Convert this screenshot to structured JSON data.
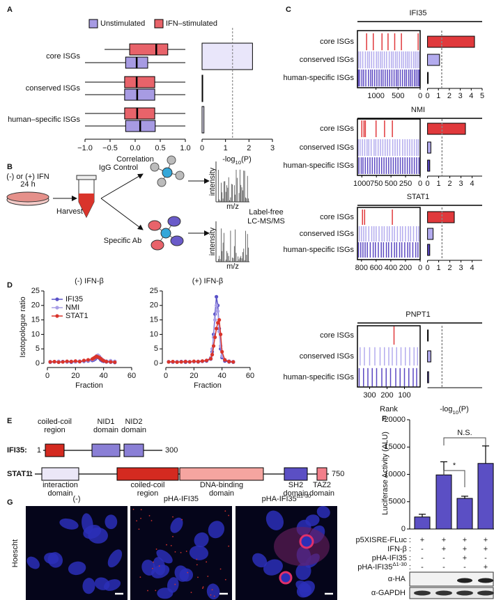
{
  "A": {
    "label": "A",
    "categories": [
      "core ISGs",
      "conserved ISGs",
      "human–specific ISGs"
    ],
    "series": [
      {
        "name": "Unstimulated",
        "color": "#a79be3",
        "boxes": [
          [
            -1.0,
            -0.19,
            0.03,
            0.25,
            1.0
          ],
          [
            -1.0,
            -0.21,
            0.04,
            0.39,
            1.0
          ],
          [
            -1.0,
            -0.19,
            0.1,
            0.4,
            1.0
          ]
        ]
      },
      {
        "name": "IFN–stimulated",
        "color": "#e8636a",
        "boxes": [
          [
            -0.61,
            -0.11,
            0.42,
            0.65,
            1.0
          ],
          [
            -1.0,
            -0.21,
            0.03,
            0.39,
            1.0
          ],
          [
            -1.0,
            -0.21,
            0.04,
            0.39,
            1.0
          ]
        ]
      }
    ],
    "xlim": [
      -1,
      1
    ],
    "xticks": [
      {
        "value": -1,
        "label": "−1.0"
      },
      {
        "value": -0.5,
        "label": "−0.5"
      },
      {
        "value": 0,
        "label": "0.0"
      },
      {
        "value": 0.5,
        "label": "0.5"
      },
      {
        "value": 1,
        "label": "1.0"
      }
    ],
    "xlabel": "Correlation",
    "p": {
      "values": [
        2.15,
        0.03,
        0.08
      ],
      "color": "#e9e6fa",
      "xlim": [
        0,
        3
      ],
      "xticks": [
        0,
        1,
        2,
        3
      ],
      "threshold": 1.3,
      "xlabel": {
        "base": "-log",
        "sub": "10",
        "end": "(P)"
      }
    }
  },
  "B": {
    "label": "B",
    "treatment": [
      "(-) or (+) IFN",
      "24 h"
    ],
    "harvest": "Harvest",
    "control": "IgG Control",
    "antibody": "Specific Ab",
    "spectrum_y": "intensity",
    "spectrum_x": "m/z",
    "method": [
      "Label-free",
      "LC-MS/MS"
    ]
  },
  "C": {
    "label": "C",
    "colors": [
      "#e0393c",
      "#b3abee",
      "#5b48c2"
    ],
    "rank_xlabel": "Rank",
    "p_xlabel": {
      "base": "-log",
      "sub": "10",
      "end": "(P)"
    },
    "blocks": [
      {
        "title": "IFI35",
        "categories": [
          "core ISGs",
          "conserved ISGs",
          "human-specific ISGs"
        ],
        "rank_xlim": [
          1420,
          0
        ],
        "rank_xticks": [
          1000,
          500,
          0
        ],
        "ranks": [
          [
            1212,
            1061,
            864,
            727,
            576,
            424,
            45
          ],
          [
            1390,
            1350,
            1300,
            1240,
            1190,
            1150,
            1100,
            1050,
            990,
            950,
            900,
            860,
            810,
            760,
            700,
            650,
            610,
            560,
            520,
            470,
            420,
            380,
            330,
            290,
            250,
            200,
            150,
            110,
            70,
            30
          ],
          [
            1400,
            1370,
            1320,
            1280,
            1230,
            1170,
            1120,
            1080,
            1030,
            980,
            930,
            880,
            840,
            790,
            740,
            690,
            640,
            590,
            540,
            500,
            450,
            400,
            350,
            310,
            260,
            220,
            180,
            130,
            90,
            50,
            20
          ]
        ],
        "p_values": [
          4.3,
          1.1,
          0.05
        ],
        "p_xlim": [
          -0.1,
          5
        ],
        "p_xticks": [
          0,
          1,
          2,
          3,
          4,
          5
        ],
        "threshold": 1.3
      },
      {
        "title": "NMI",
        "categories": [
          "core ISGs",
          "conserved ISGs",
          "human-specific ISGs"
        ],
        "rank_xlim": [
          1075,
          0
        ],
        "rank_xticks": [
          1000,
          750,
          500,
          250,
          0
        ],
        "ranks": [
          [
            1000,
            963,
            939,
            756,
            610,
            476
          ],
          [
            1060,
            1030,
            990,
            950,
            910,
            880,
            840,
            790,
            760,
            720,
            680,
            640,
            600,
            560,
            520,
            470,
            430,
            390,
            350,
            300,
            260,
            220,
            180,
            140,
            100,
            60,
            30
          ],
          [
            1050,
            1010,
            980,
            940,
            900,
            860,
            820,
            780,
            740,
            700,
            660,
            620,
            580,
            540,
            500,
            460,
            420,
            380,
            340,
            300,
            260,
            220,
            180,
            140,
            100,
            60,
            20
          ]
        ],
        "p_values": [
          3.4,
          0.3,
          0.2
        ],
        "p_xlim": [
          -0.1,
          4.9
        ],
        "p_xticks": [
          0,
          1,
          2,
          3,
          4
        ],
        "threshold": 1.3
      },
      {
        "title": "STAT1",
        "categories": [
          "core ISGs",
          "conserved ISGs",
          "human-specific ISGs"
        ],
        "rank_xlim": [
          855,
          0
        ],
        "rank_xticks": [
          800,
          600,
          400,
          200,
          0
        ],
        "ranks": [
          [
            786,
            757,
            379
          ],
          [
            830,
            800,
            770,
            740,
            700,
            660,
            630,
            600,
            560,
            520,
            490,
            450,
            420,
            380,
            350,
            310,
            270,
            240,
            200,
            160,
            130,
            90,
            50,
            20
          ],
          [
            840,
            810,
            780,
            750,
            720,
            680,
            640,
            610,
            570,
            530,
            500,
            460,
            430,
            390,
            350,
            320,
            280,
            250,
            210,
            170,
            140,
            100,
            60,
            30
          ]
        ],
        "p_values": [
          2.4,
          0.5,
          0.2
        ],
        "p_xlim": [
          -0.1,
          4.9
        ],
        "p_xticks": [
          0,
          1,
          2,
          3,
          4
        ],
        "threshold": 1.3
      },
      {
        "title": "PNPT1",
        "categories": [
          "core ISGs",
          "conserved ISGs",
          "human-specific ISGs"
        ],
        "rank_xlim": [
          370,
          10
        ],
        "rank_xticks": [
          300,
          200,
          100
        ],
        "ranks": [
          [
            160
          ],
          [
            355,
            330,
            300,
            270,
            240,
            215,
            190,
            170,
            145,
            120,
            95,
            70,
            45,
            25
          ],
          [
            360,
            335,
            310,
            285,
            260,
            230,
            205,
            180,
            150,
            125,
            100,
            75,
            50,
            30
          ]
        ],
        "p_values": [
          0.05,
          0.3,
          0.1
        ],
        "p_xlim": [
          -0.1,
          4.9
        ],
        "threshold": 1.3
      }
    ]
  },
  "D": {
    "label": "D",
    "ylabel": "Isotopologue ratio",
    "xlabel": "Fraction",
    "xlim": [
      0,
      60
    ],
    "xticks": [
      0,
      20,
      40,
      60
    ],
    "ylim": [
      0,
      25
    ],
    "yticks": [
      0,
      5,
      10,
      15,
      20,
      25
    ],
    "series": [
      {
        "name": "IFI35",
        "color": "#5a52c8"
      },
      {
        "name": "NMI",
        "color": "#a99fe6"
      },
      {
        "name": "STAT1",
        "color": "#d9342b"
      }
    ],
    "x": [
      2,
      5,
      8,
      11,
      14,
      17,
      20,
      23,
      26,
      29,
      32,
      33,
      34,
      35,
      36,
      37,
      38,
      39,
      40,
      42,
      45,
      48
    ],
    "plots": [
      {
        "title": "(-) IFN-β",
        "values": [
          [
            0.4,
            0.5,
            0.4,
            0.6,
            0.5,
            0.4,
            0.5,
            0.6,
            0.7,
            0.8,
            1.0,
            1.2,
            1.5,
            2.0,
            2.3,
            1.8,
            1.2,
            0.9,
            0.7,
            0.5,
            0.4,
            0.3
          ],
          [
            0.6,
            0.5,
            0.7,
            0.5,
            0.6,
            0.7,
            0.5,
            0.8,
            0.9,
            1.0,
            1.3,
            1.6,
            2.0,
            2.6,
            2.8,
            2.4,
            1.8,
            1.3,
            1.0,
            0.8,
            0.9,
            0.7
          ],
          [
            0.5,
            0.6,
            0.4,
            0.5,
            0.7,
            0.6,
            0.8,
            0.6,
            1.0,
            1.2,
            1.5,
            1.8,
            2.1,
            2.4,
            2.2,
            2.0,
            1.6,
            1.2,
            0.9,
            0.6,
            0.5,
            0.4
          ]
        ]
      },
      {
        "title": "(+) IFN-β",
        "values": [
          [
            0.5,
            0.4,
            0.5,
            0.6,
            0.4,
            0.5,
            0.6,
            0.5,
            0.7,
            0.8,
            1.5,
            4,
            10,
            17,
            23,
            20,
            12,
            5,
            2,
            0.8,
            0.5,
            0.4
          ],
          [
            0.6,
            0.5,
            0.6,
            0.5,
            0.7,
            0.6,
            0.5,
            0.7,
            0.8,
            1.0,
            2,
            5,
            9,
            15,
            20,
            18,
            11,
            6,
            2.5,
            1.2,
            0.8,
            0.6
          ],
          [
            0.5,
            0.6,
            0.4,
            0.5,
            0.6,
            0.5,
            0.7,
            0.6,
            0.8,
            1.0,
            1.6,
            3,
            6,
            9,
            12,
            14,
            15,
            10,
            4,
            1.2,
            0.6,
            0.5
          ]
        ]
      }
    ]
  },
  "E": {
    "label": "E",
    "proteins": [
      {
        "name": "IFI35:",
        "start": 1,
        "end": 300,
        "domains": [
          [
            "coiled-coil",
            "region"
          ],
          [
            "NID1",
            "domain"
          ],
          [
            "NID2",
            "domain"
          ]
        ]
      },
      {
        "name": "STAT1:",
        "start": 1,
        "end": 750,
        "domains": [
          [
            "interaction",
            "domain"
          ],
          [
            "coiled-coil",
            "region"
          ],
          [
            "DNA-binding",
            "domain"
          ],
          [
            "SH2",
            "domain"
          ],
          [
            "TAZ2",
            "domain"
          ]
        ]
      }
    ]
  },
  "F": {
    "label": "F",
    "ylabel": "Luciferase Activity (ALU)",
    "ylim": [
      0,
      20000
    ],
    "yticks": [
      0,
      5000,
      10000,
      15000,
      20000
    ],
    "values": [
      2200,
      9900,
      5600,
      12000
    ],
    "errors": [
      500,
      2400,
      400,
      3200
    ],
    "color": "#5b4fc4",
    "significance": [
      "*",
      "N.S."
    ],
    "conditions": [
      {
        "label": "p5XISRE-FLuc :",
        "signs": [
          "+",
          "+",
          "+",
          "+"
        ]
      },
      {
        "label": "IFN-β :",
        "signs": [
          "-",
          "+",
          "+",
          "+"
        ]
      },
      {
        "label": "pHA-IFI35 :",
        "signs": [
          "-",
          "-",
          "+",
          "-"
        ]
      },
      {
        "label": {
          "base": "pHA-IFI35",
          "sup": "Δ1-30",
          "end": " :"
        },
        "signs": [
          "-",
          "-",
          "-",
          "+"
        ]
      }
    ],
    "blots": [
      "α-HA",
      "α-GAPDH"
    ]
  },
  "G": {
    "label": "G",
    "stain": "Hoescht",
    "titles": [
      "(-)",
      "pHA-IFI35",
      {
        "base": "pHA-IFI35",
        "sup": "Δ1-30"
      }
    ]
  }
}
